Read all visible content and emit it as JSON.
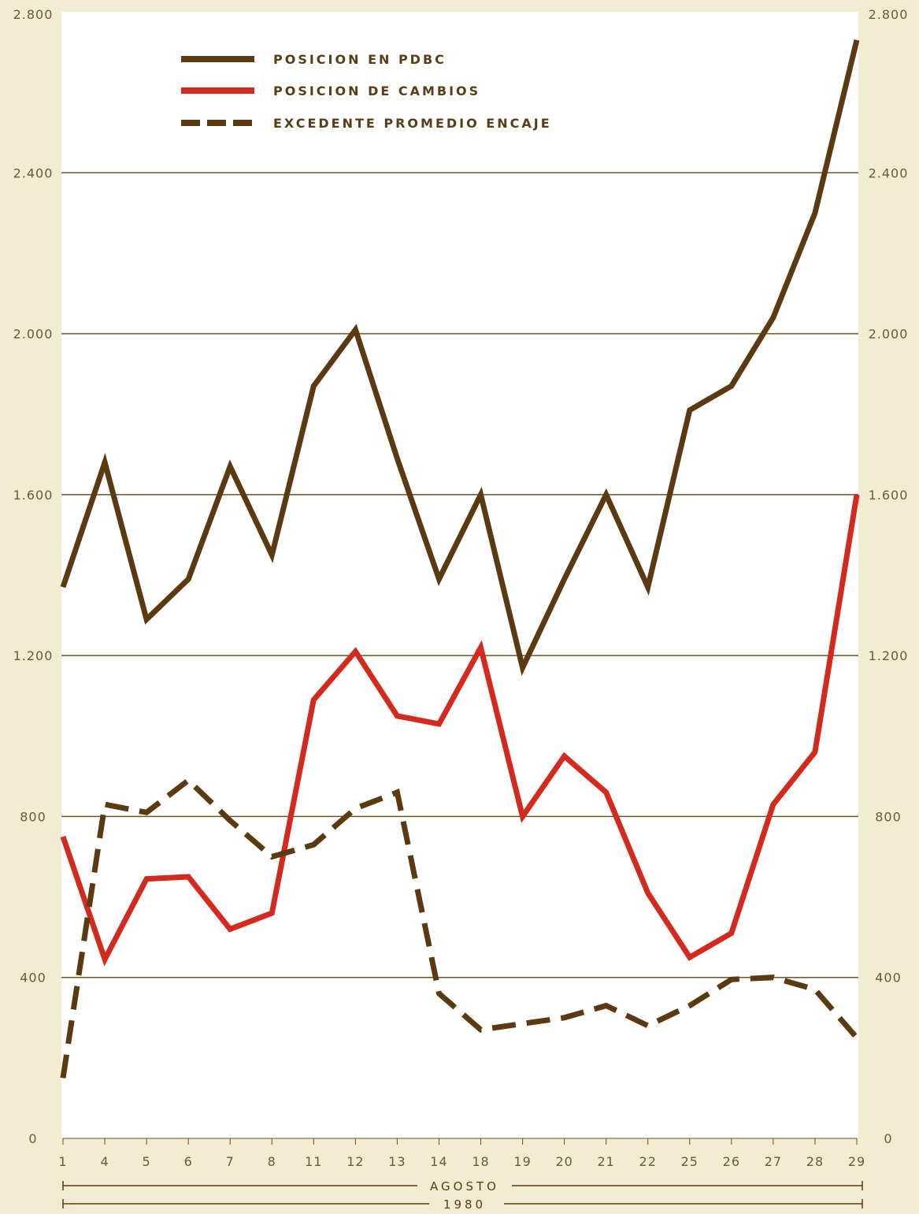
{
  "chart_data": {
    "type": "line",
    "title": "",
    "xlabel": "",
    "ylabel": "",
    "categories": [
      "1",
      "4",
      "5",
      "6",
      "7",
      "8",
      "11",
      "12",
      "13",
      "14",
      "18",
      "19",
      "20",
      "21",
      "22",
      "25",
      "26",
      "27",
      "28",
      "29"
    ],
    "period_label": "AGOSTO",
    "year_label": "1980",
    "ylim": [
      0,
      2800
    ],
    "yticks": [
      0,
      400,
      800,
      1200,
      1600,
      2000,
      2400,
      2800
    ],
    "ytick_labels": [
      "0",
      "400",
      "800",
      "1.200",
      "1.600",
      "2.000",
      "2.400",
      "2.800"
    ],
    "grid": true,
    "legend_position": "top-left",
    "series": [
      {
        "name": "POSICION EN PDBC",
        "color": "#5b3a12",
        "style": "solid",
        "values": [
          1370,
          1680,
          1290,
          1390,
          1670,
          1450,
          1870,
          2010,
          1690,
          1390,
          1600,
          1170,
          1390,
          1600,
          1370,
          1810,
          1870,
          2040,
          2300,
          2730
        ]
      },
      {
        "name": "POSICION DE CAMBIOS",
        "color": "#d42a1e",
        "style": "solid",
        "values": [
          750,
          445,
          645,
          650,
          520,
          560,
          1090,
          1210,
          1050,
          1030,
          1220,
          800,
          950,
          860,
          610,
          450,
          510,
          830,
          960,
          1600
        ]
      },
      {
        "name": "EXCEDENTE PROMEDIO ENCAJE",
        "color": "#5b3a12",
        "style": "dashed",
        "values": [
          150,
          830,
          810,
          890,
          790,
          700,
          730,
          820,
          860,
          360,
          270,
          285,
          300,
          330,
          280,
          330,
          395,
          400,
          370,
          250
        ]
      }
    ]
  }
}
